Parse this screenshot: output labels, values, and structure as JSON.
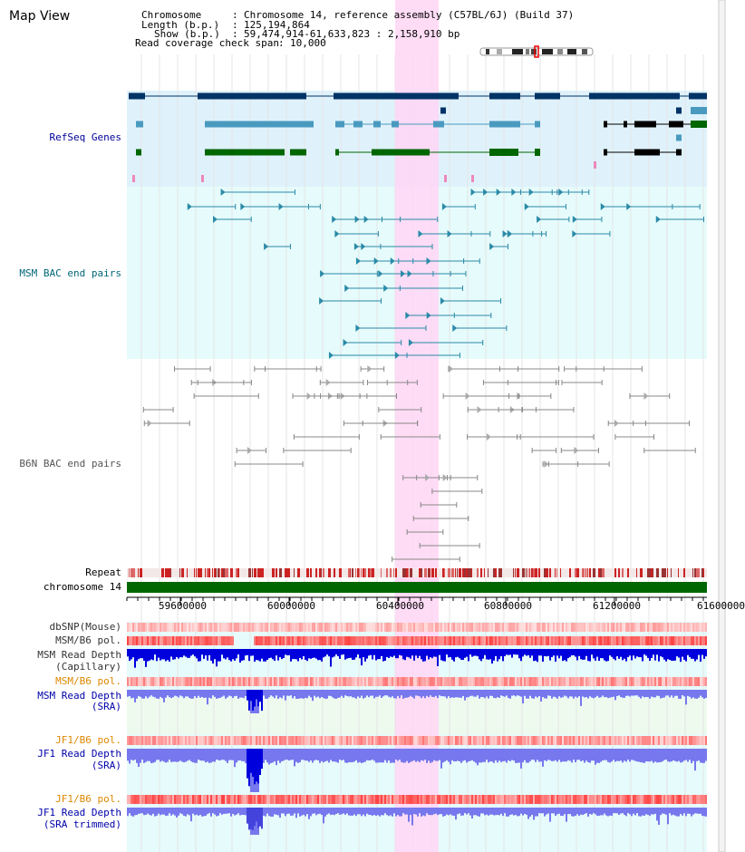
{
  "title": "Map View",
  "header": {
    "chromosome_key": "Chromosome",
    "chromosome_val": "Chromosome 14, reference assembly (C57BL/6J) (Build 37)",
    "length_key": "Length (b.p.)",
    "length_val": "125,194,864",
    "show_key": "Show (b.p.)",
    "show_val": "59,474,914-61,633,823 : 2,158,910 bp",
    "coverage_key": "Read coverage check span",
    "coverage_val": "10,000"
  },
  "tracks": {
    "refseq": "RefSeq Genes",
    "msm_bac": "MSM BAC end pairs",
    "b6n_bac": "B6N BAC end pairs",
    "repeat": "Repeat",
    "chromosome": "chromosome 14",
    "dbsnp": "dbSNP(Mouse)",
    "msm_b6_pol_1": "MSM/B6 pol.",
    "msm_read_depth_cap_1": "MSM Read Depth",
    "msm_read_depth_cap_2": "(Capillary)",
    "msm_b6_pol_2": "MSM/B6 pol.",
    "msm_read_depth_sra_1": "MSM Read Depth",
    "msm_read_depth_sra_2": "(SRA)",
    "jf1_b6_pol_1": "JF1/B6 pol.",
    "jf1_read_depth_sra_1": "JF1 Read Depth",
    "jf1_read_depth_sra_2": "(SRA)",
    "jf1_b6_pol_2": "JF1/B6 pol.",
    "jf1_read_depth_trim_1": "JF1 Read Depth",
    "jf1_read_depth_trim_2": "(SRA trimmed)"
  },
  "axis": {
    "ticks": [
      "59600000",
      "60000000",
      "60400000",
      "60800000",
      "61200000",
      "61600000"
    ]
  },
  "colors": {
    "refseq_bg": "#dff2fb",
    "msm_bg": "#e6fbfb",
    "highlight": "#ffd6f5",
    "gene_dark": "#003366",
    "gene_mid": "#4a9ac0",
    "gene_green": "#006600",
    "chrom_green": "#006600",
    "teal_line": "#2a8aa8",
    "gray_line": "#888888",
    "depth_blue": "#0000dd",
    "depth_light": "#7777ee",
    "pol_red": "#ee2222"
  }
}
